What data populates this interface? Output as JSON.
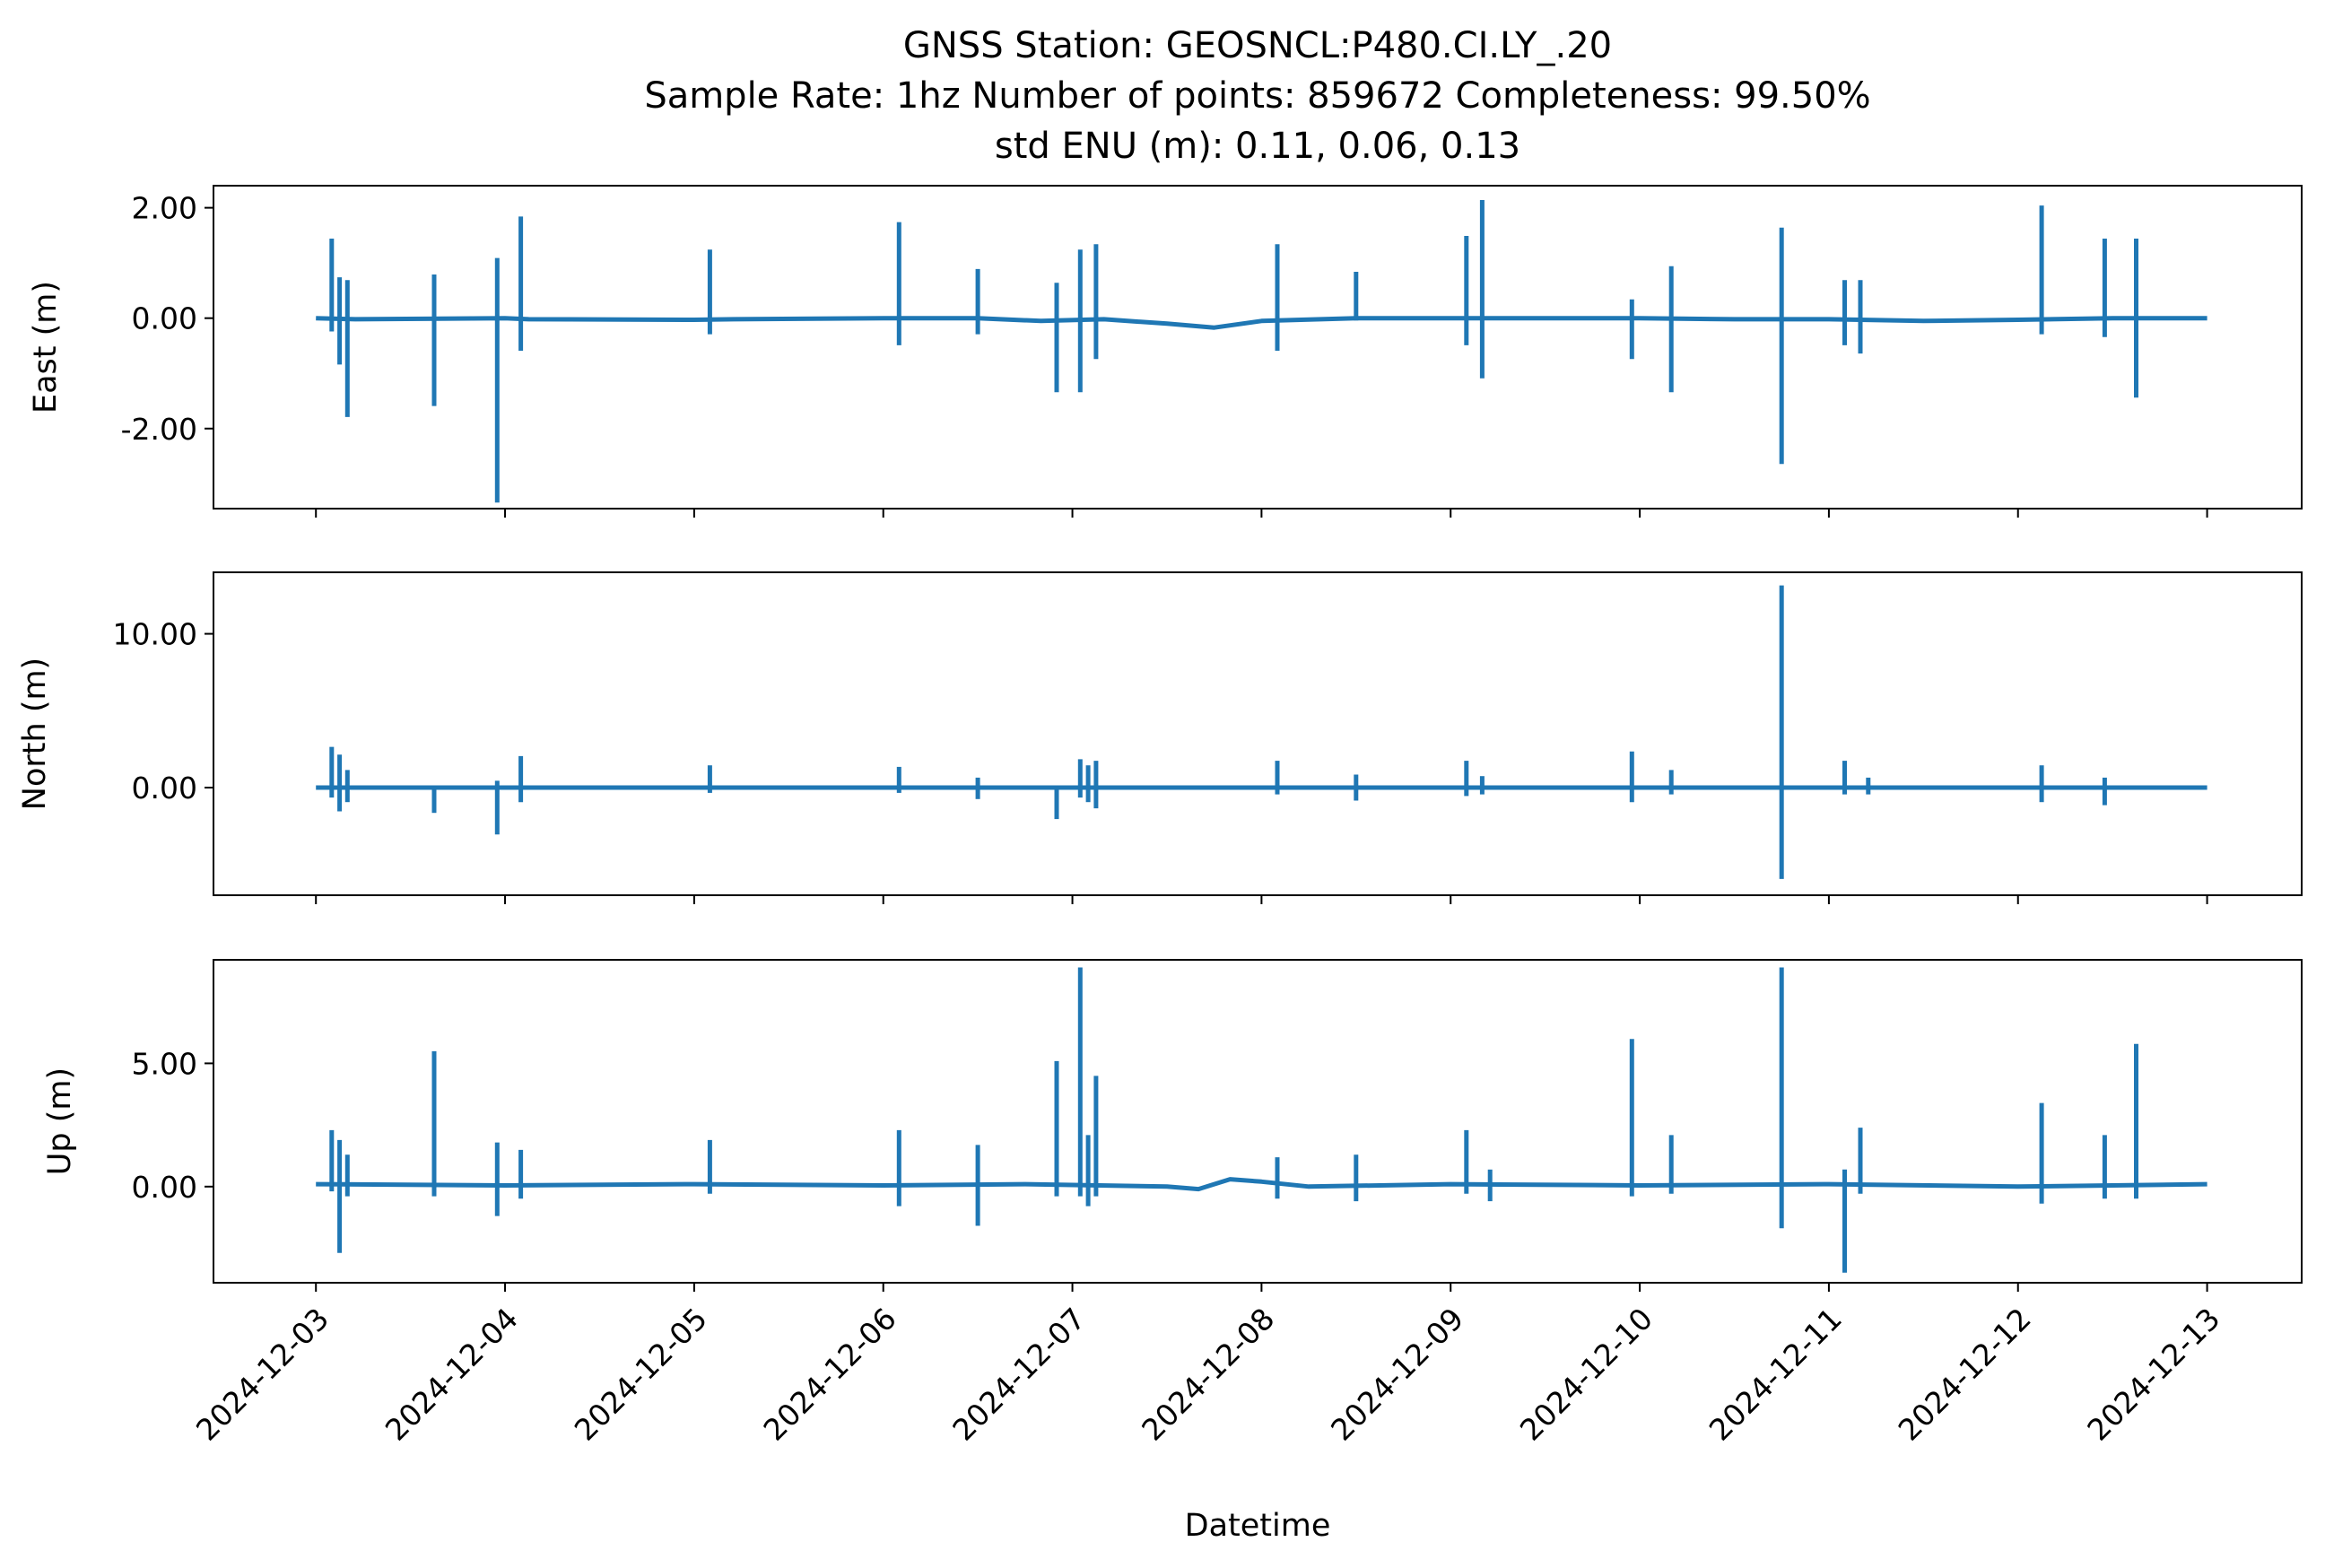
{
  "chart_data": {
    "type": "line",
    "title": [
      "GNSS Station: GEOSNCL:P480.CI.LY_.20",
      "Sample Rate: 1hz   Number of points: 859672    Completeness:  99.50%",
      "std ENU (m):  0.11, 0.06, 0.13"
    ],
    "xlabel": "Datetime",
    "x_ticks": [
      "2024-12-03",
      "2024-12-04",
      "2024-12-05",
      "2024-12-06",
      "2024-12-07",
      "2024-12-08",
      "2024-12-09",
      "2024-12-10",
      "2024-12-11",
      "2024-12-12",
      "2024-12-13"
    ],
    "xlim": [
      "2024-12-02 11:00",
      "2024-12-13 12:00"
    ],
    "grid": false,
    "color": "#1f77b4",
    "panels": [
      {
        "name": "east",
        "ylabel": "East (m)",
        "ylim": [
          -3.45,
          2.4
        ],
        "y_ticks": [
          {
            "value": 2,
            "label": "2.00"
          },
          {
            "value": 0,
            "label": "0.00"
          },
          {
            "value": -2,
            "label": "-2.00"
          }
        ],
        "baseline": [
          [
            "2024-12-03 00:00",
            0
          ],
          [
            "2024-12-03 05:00",
            -0.02
          ],
          [
            "2024-12-04 00:00",
            0
          ],
          [
            "2024-12-04 03:00",
            -0.02
          ],
          [
            "2024-12-05 00:00",
            -0.03
          ],
          [
            "2024-12-05 05:00",
            -0.02
          ],
          [
            "2024-12-06 00:00",
            0
          ],
          [
            "2024-12-06 12:00",
            0
          ],
          [
            "2024-12-06 20:00",
            -0.05
          ],
          [
            "2024-12-07 04:00",
            -0.02
          ],
          [
            "2024-12-07 12:00",
            -0.1
          ],
          [
            "2024-12-07 18:00",
            -0.17
          ],
          [
            "2024-12-08 00:00",
            -0.05
          ],
          [
            "2024-12-08 12:00",
            0
          ],
          [
            "2024-12-09 06:00",
            0
          ],
          [
            "2024-12-09 12:00",
            0
          ],
          [
            "2024-12-10 00:00",
            0
          ],
          [
            "2024-12-10 12:00",
            -0.02
          ],
          [
            "2024-12-11 00:00",
            -0.02
          ],
          [
            "2024-12-11 12:00",
            -0.05
          ],
          [
            "2024-12-12 00:00",
            -0.03
          ],
          [
            "2024-12-12 12:00",
            0
          ],
          [
            "2024-12-13 00:00",
            0
          ]
        ],
        "spikes": [
          [
            "2024-12-03 02:00",
            1.4,
            -0.2
          ],
          [
            "2024-12-03 03:00",
            0.7,
            -0.8
          ],
          [
            "2024-12-03 04:00",
            0.65,
            -1.75
          ],
          [
            "2024-12-03 15:00",
            0.75,
            -1.55
          ],
          [
            "2024-12-03 23:00",
            1.05,
            -3.3
          ],
          [
            "2024-12-04 02:00",
            1.8,
            -0.55
          ],
          [
            "2024-12-05 02:00",
            1.2,
            -0.25
          ],
          [
            "2024-12-06 02:00",
            1.7,
            -0.45
          ],
          [
            "2024-12-06 12:00",
            0.85,
            -0.25
          ],
          [
            "2024-12-06 22:00",
            0.6,
            -1.3
          ],
          [
            "2024-12-07 01:00",
            1.2,
            -1.3
          ],
          [
            "2024-12-07 03:00",
            1.3,
            -0.7
          ],
          [
            "2024-12-08 02:00",
            1.3,
            -0.55
          ],
          [
            "2024-12-08 12:00",
            0.8,
            0
          ],
          [
            "2024-12-09 02:00",
            1.45,
            -0.45
          ],
          [
            "2024-12-09 04:00",
            2.1,
            -1.05
          ],
          [
            "2024-12-09 23:00",
            0.3,
            -0.7
          ],
          [
            "2024-12-10 04:00",
            0.9,
            -1.3
          ],
          [
            "2024-12-10 18:00",
            1.6,
            -2.6
          ],
          [
            "2024-12-11 02:00",
            0.65,
            -0.45
          ],
          [
            "2024-12-11 04:00",
            0.65,
            -0.6
          ],
          [
            "2024-12-12 03:00",
            2,
            -0.25
          ],
          [
            "2024-12-12 11:00",
            1.4,
            -0.3
          ],
          [
            "2024-12-12 15:00",
            1.4,
            -1.4
          ]
        ]
      },
      {
        "name": "north",
        "ylabel": "North (m)",
        "ylim": [
          -7,
          14
        ],
        "y_ticks": [
          {
            "value": 10,
            "label": "10.00"
          },
          {
            "value": 0,
            "label": "0.00"
          }
        ],
        "baseline": [
          [
            "2024-12-03 00:00",
            0
          ],
          [
            "2024-12-13 00:00",
            0
          ]
        ],
        "spikes": [
          [
            "2024-12-03 02:00",
            2.5,
            -0.5
          ],
          [
            "2024-12-03 03:00",
            2,
            -1.4
          ],
          [
            "2024-12-03 04:00",
            1,
            -0.8
          ],
          [
            "2024-12-03 15:00",
            0,
            -1.5
          ],
          [
            "2024-12-03 23:00",
            0.3,
            -2.9
          ],
          [
            "2024-12-04 02:00",
            1.9,
            -0.8
          ],
          [
            "2024-12-05 02:00",
            1.3,
            -0.2
          ],
          [
            "2024-12-06 02:00",
            1.2,
            -0.2
          ],
          [
            "2024-12-06 12:00",
            0.5,
            -0.6
          ],
          [
            "2024-12-06 22:00",
            0,
            -1.9
          ],
          [
            "2024-12-07 01:00",
            1.7,
            -0.5
          ],
          [
            "2024-12-07 02:00",
            1.3,
            -0.8
          ],
          [
            "2024-12-07 03:00",
            1.6,
            -1.2
          ],
          [
            "2024-12-08 02:00",
            1.6,
            -0.3
          ],
          [
            "2024-12-08 12:00",
            0.7,
            -0.7
          ],
          [
            "2024-12-09 02:00",
            1.6,
            -0.4
          ],
          [
            "2024-12-09 04:00",
            0.6,
            -0.3
          ],
          [
            "2024-12-09 23:00",
            2.2,
            -0.8
          ],
          [
            "2024-12-10 04:00",
            1,
            -0.3
          ],
          [
            "2024-12-10 18:00",
            13,
            -5.8
          ],
          [
            "2024-12-11 02:00",
            1.6,
            -0.3
          ],
          [
            "2024-12-11 05:00",
            0.5,
            -0.3
          ],
          [
            "2024-12-12 03:00",
            1.3,
            -0.8
          ],
          [
            "2024-12-12 11:00",
            0.5,
            -1
          ]
        ]
      },
      {
        "name": "up",
        "ylabel": "Up (m)",
        "ylim": [
          -3.9,
          9.2
        ],
        "y_ticks": [
          {
            "value": 5,
            "label": "5.00"
          },
          {
            "value": 0,
            "label": "0.00"
          }
        ],
        "baseline": [
          [
            "2024-12-03 00:00",
            0.1
          ],
          [
            "2024-12-04 00:00",
            0.05
          ],
          [
            "2024-12-05 00:00",
            0.1
          ],
          [
            "2024-12-06 00:00",
            0.05
          ],
          [
            "2024-12-06 18:00",
            0.1
          ],
          [
            "2024-12-07 12:00",
            0
          ],
          [
            "2024-12-07 16:00",
            -0.1
          ],
          [
            "2024-12-07 20:00",
            0.3
          ],
          [
            "2024-12-08 00:00",
            0.2
          ],
          [
            "2024-12-08 06:00",
            0
          ],
          [
            "2024-12-09 00:00",
            0.1
          ],
          [
            "2024-12-10 00:00",
            0.05
          ],
          [
            "2024-12-11 00:00",
            0.1
          ],
          [
            "2024-12-12 00:00",
            0
          ],
          [
            "2024-12-13 00:00",
            0.1
          ]
        ],
        "spikes": [
          [
            "2024-12-03 02:00",
            2.2,
            -0.1
          ],
          [
            "2024-12-03 03:00",
            1.8,
            -2.6
          ],
          [
            "2024-12-03 04:00",
            1.2,
            -0.3
          ],
          [
            "2024-12-03 15:00",
            5.4,
            -0.3
          ],
          [
            "2024-12-03 23:00",
            1.7,
            -1.1
          ],
          [
            "2024-12-04 02:00",
            1.4,
            -0.4
          ],
          [
            "2024-12-05 02:00",
            1.8,
            -0.2
          ],
          [
            "2024-12-06 02:00",
            2.2,
            -0.7
          ],
          [
            "2024-12-06 12:00",
            1.6,
            -1.5
          ],
          [
            "2024-12-06 22:00",
            5,
            -0.3
          ],
          [
            "2024-12-07 01:00",
            8.8,
            -0.3
          ],
          [
            "2024-12-07 02:00",
            2,
            -0.7
          ],
          [
            "2024-12-07 03:00",
            4.4,
            -0.3
          ],
          [
            "2024-12-08 02:00",
            1.1,
            -0.4
          ],
          [
            "2024-12-08 12:00",
            1.2,
            -0.5
          ],
          [
            "2024-12-09 02:00",
            2.2,
            -0.2
          ],
          [
            "2024-12-09 05:00",
            0.6,
            -0.5
          ],
          [
            "2024-12-09 23:00",
            5.9,
            -0.3
          ],
          [
            "2024-12-10 04:00",
            2,
            -0.2
          ],
          [
            "2024-12-10 18:00",
            8.8,
            -1.6
          ],
          [
            "2024-12-11 02:00",
            0.6,
            -3.4
          ],
          [
            "2024-12-11 04:00",
            2.3,
            -0.2
          ],
          [
            "2024-12-12 03:00",
            3.3,
            -0.6
          ],
          [
            "2024-12-12 11:00",
            2,
            -0.4
          ],
          [
            "2024-12-12 15:00",
            5.7,
            -0.4
          ]
        ]
      }
    ]
  }
}
